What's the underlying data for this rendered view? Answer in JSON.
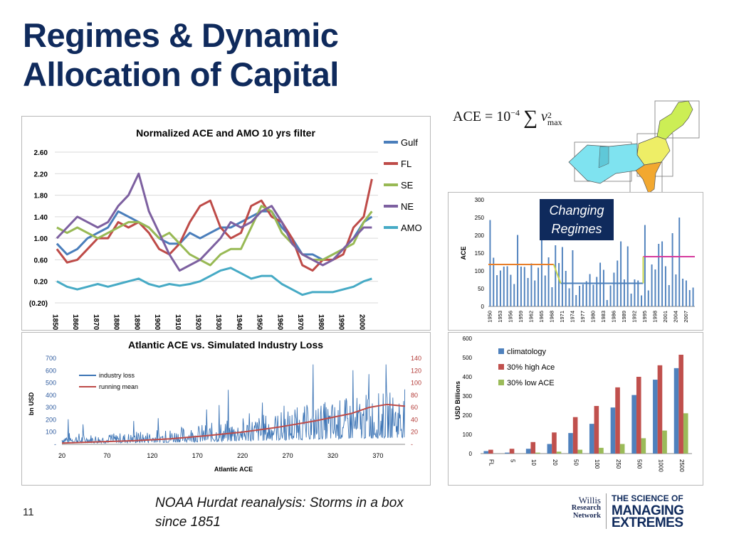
{
  "slide": {
    "title_line1": "Regimes & Dynamic",
    "title_line2": "Allocation of Capital",
    "caption_line1": "NOAA Hurdat reanalysis: Storms in a box",
    "caption_line2": "since 1851",
    "page_number": "11",
    "logo_willis": [
      "Willis",
      "Research",
      "Network"
    ],
    "logo_sme": [
      "THE SCIENCE OF",
      "MANAGING",
      "EXTREMES"
    ]
  },
  "formula": {
    "lhs": "ACE = 10",
    "exp": "−4",
    "sum": "∑",
    "var": "v",
    "sup": "2",
    "sub": "max"
  },
  "colors": {
    "title": "#0f2a5c",
    "gulf": "#4a7ebb",
    "fl": "#be4b48",
    "se": "#98b954",
    "ne": "#7d60a0",
    "amo": "#46aac5",
    "climatology": "#4f81bd",
    "high": "#c0504d",
    "low": "#9bbb59"
  },
  "chart_data": [
    {
      "type": "line",
      "title": "Normalized ACE and AMO 10 yrs filter",
      "x_ticks": [
        "1850",
        "1860",
        "1870",
        "1880",
        "1890",
        "1900",
        "1910",
        "1920",
        "1930",
        "1940",
        "1950",
        "1960",
        "1970",
        "1980",
        "1990",
        "2000"
      ],
      "y_ticks": [
        "2.60",
        "2.20",
        "1.80",
        "1.40",
        "1.00",
        "0.60",
        "0.20",
        "(0.20)"
      ],
      "ylim": [
        -0.2,
        2.6
      ],
      "grid": true,
      "legend_position": "right",
      "x": [
        1851,
        1856,
        1861,
        1866,
        1871,
        1876,
        1881,
        1886,
        1891,
        1896,
        1901,
        1906,
        1911,
        1916,
        1921,
        1926,
        1931,
        1936,
        1941,
        1946,
        1951,
        1956,
        1961,
        1966,
        1971,
        1976,
        1981,
        1986,
        1991,
        1996,
        2001,
        2005
      ],
      "series": [
        {
          "name": "Gulf",
          "values": [
            0.9,
            0.7,
            0.8,
            1.0,
            1.1,
            1.2,
            1.5,
            1.4,
            1.3,
            1.2,
            1.0,
            0.9,
            0.9,
            1.1,
            1.0,
            1.1,
            1.2,
            1.2,
            1.3,
            1.4,
            1.5,
            1.5,
            1.2,
            1.0,
            0.7,
            0.7,
            0.6,
            0.7,
            0.8,
            1.0,
            1.3,
            1.4
          ]
        },
        {
          "name": "FL",
          "values": [
            0.8,
            0.55,
            0.6,
            0.8,
            1.0,
            1.0,
            1.3,
            1.2,
            1.3,
            1.1,
            0.8,
            0.7,
            0.9,
            1.3,
            1.6,
            1.7,
            1.2,
            1.0,
            1.1,
            1.6,
            1.7,
            1.4,
            1.3,
            1.0,
            0.5,
            0.4,
            0.6,
            0.6,
            0.7,
            1.2,
            1.4,
            2.1
          ]
        },
        {
          "name": "SE",
          "values": [
            1.2,
            1.1,
            1.2,
            1.1,
            1.0,
            1.1,
            1.2,
            1.3,
            1.3,
            1.2,
            1.0,
            1.1,
            0.9,
            0.7,
            0.6,
            0.5,
            0.7,
            0.8,
            0.8,
            1.2,
            1.6,
            1.5,
            1.1,
            0.9,
            0.7,
            0.6,
            0.6,
            0.7,
            0.8,
            0.9,
            1.3,
            1.5
          ]
        },
        {
          "name": "NE",
          "values": [
            1.0,
            1.2,
            1.4,
            1.3,
            1.2,
            1.3,
            1.6,
            1.8,
            2.2,
            1.5,
            1.1,
            0.7,
            0.4,
            0.5,
            0.6,
            0.8,
            1.0,
            1.3,
            1.2,
            1.3,
            1.5,
            1.6,
            1.3,
            0.9,
            0.7,
            0.6,
            0.5,
            0.6,
            0.8,
            1.0,
            1.2,
            1.2
          ]
        },
        {
          "name": "AMO",
          "values": [
            0.2,
            0.1,
            0.05,
            0.1,
            0.15,
            0.1,
            0.15,
            0.2,
            0.25,
            0.15,
            0.1,
            0.15,
            0.12,
            0.15,
            0.2,
            0.3,
            0.4,
            0.45,
            0.35,
            0.25,
            0.3,
            0.3,
            0.15,
            0.05,
            -0.05,
            0.0,
            0.0,
            0.0,
            0.05,
            0.1,
            0.2,
            0.25
          ]
        }
      ]
    },
    {
      "type": "bar",
      "title": "",
      "ylabel": "ACE",
      "ylim": [
        0,
        300
      ],
      "y_ticks": [
        "300",
        "250",
        "200",
        "150",
        "100",
        "50",
        "0"
      ],
      "x_ticks": [
        "1950",
        "1953",
        "1956",
        "1959",
        "1962",
        "1965",
        "1968",
        "1971",
        "1974",
        "1977",
        "1980",
        "1983",
        "1986",
        "1989",
        "1992",
        "1995",
        "1998",
        "2001",
        "2004",
        "2007"
      ],
      "start_year": 1950,
      "values": [
        243,
        137,
        88,
        101,
        112,
        113,
        89,
        63,
        201,
        112,
        111,
        80,
        121,
        73,
        109,
        207,
        87,
        138,
        54,
        172,
        122,
        167,
        100,
        51,
        158,
        32,
        58,
        62,
        71,
        91,
        61,
        83,
        123,
        103,
        18,
        59,
        95,
        129,
        183,
        76,
        169,
        36,
        76,
        73,
        31,
        229,
        45,
        118,
        104,
        176,
        183,
        113,
        60,
        206,
        90,
        250,
        78,
        73,
        46,
        53
      ],
      "regime_levels": [
        {
          "from": 1950,
          "to": 1968,
          "value": 118,
          "color": "#e87e28"
        },
        {
          "from": 1971,
          "to": 1994,
          "value": 65,
          "color": "#4a7ebb"
        },
        {
          "from": 1995,
          "to": 2009,
          "value": 140,
          "color": "#d53a9d"
        }
      ],
      "annotation": "Changing Regimes"
    },
    {
      "type": "line",
      "title": "Atlantic ACE vs. Simulated Industry Loss",
      "xlabel": "Atlantic ACE",
      "ylabel": "bn USD",
      "x_ticks": [
        "20",
        "70",
        "120",
        "170",
        "220",
        "270",
        "320",
        "370"
      ],
      "y_ticks_left": [
        "700",
        "600",
        "500",
        "400",
        "300",
        "200",
        "100",
        "-"
      ],
      "y_ticks_right": [
        "140",
        "120",
        "100",
        "80",
        "60",
        "40",
        "20",
        "-"
      ],
      "ylim": [
        0,
        700
      ],
      "ylim_right": [
        0,
        140
      ],
      "xlim": [
        20,
        400
      ],
      "legend_position": "top-left",
      "series": [
        {
          "name": "industry loss",
          "axis": "left",
          "x": [
            20,
            60,
            100,
            140,
            180,
            220,
            260,
            300,
            340,
            380,
            400
          ],
          "values": [
            60,
            50,
            60,
            80,
            100,
            130,
            160,
            200,
            230,
            260,
            270
          ]
        },
        {
          "name": "running mean",
          "axis": "right",
          "x": [
            20,
            60,
            100,
            140,
            180,
            220,
            260,
            300,
            340,
            360,
            380,
            400
          ],
          "values": [
            2,
            4,
            6,
            9,
            14,
            20,
            28,
            38,
            50,
            60,
            65,
            62
          ]
        }
      ]
    },
    {
      "type": "bar",
      "title": "",
      "ylabel": "USD Billions",
      "ylim": [
        0,
        600
      ],
      "y_ticks": [
        "600",
        "500",
        "400",
        "300",
        "200",
        "100",
        "0"
      ],
      "legend_position": "top-left",
      "categories": [
        "FL",
        "5",
        "10",
        "20",
        "50",
        "100",
        "250",
        "500",
        "1000",
        "2500"
      ],
      "series": [
        {
          "name": "climatology",
          "values": [
            13,
            5,
            25,
            50,
            107,
            155,
            240,
            305,
            385,
            445
          ]
        },
        {
          "name": "30% high Ace",
          "values": [
            20,
            25,
            60,
            110,
            190,
            248,
            345,
            400,
            460,
            515
          ]
        },
        {
          "name": "30% low ACE",
          "values": [
            0,
            0,
            5,
            10,
            20,
            30,
            50,
            80,
            120,
            210
          ]
        }
      ]
    }
  ]
}
